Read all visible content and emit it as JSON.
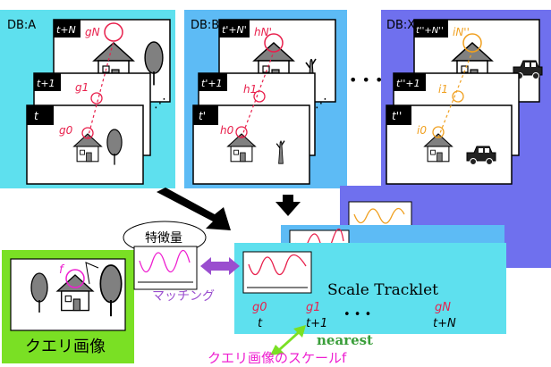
{
  "databases": [
    {
      "name": "DB:A",
      "frames": [
        "t+N",
        "t+1",
        "t"
      ],
      "labels": [
        "gN",
        "g1",
        "g0"
      ],
      "color": "#e8204c",
      "bg": "#5ee0ee"
    },
    {
      "name": "DB:B",
      "frames": [
        "t'+N'",
        "t'+1",
        "t'"
      ],
      "labels": [
        "hN'",
        "h1",
        "h0"
      ],
      "color": "#e8204c",
      "bg": "#5dbbf5"
    },
    {
      "name": "DB:X",
      "frames": [
        "t''+N''",
        "t''+1",
        "t''"
      ],
      "labels": [
        "iN''",
        "i1",
        "i0"
      ],
      "color": "#f0a020",
      "bg": "#6f70ee"
    }
  ],
  "ellipsis_top": "• • •",
  "feature_bubble": "特徴量",
  "matching_label": "マッチング",
  "query_label": "クエリ画像",
  "query_f": "f",
  "tracklet": {
    "title": "Scale Tracklet",
    "g_labels": [
      "g0",
      "g1",
      "gN"
    ],
    "t_labels": [
      "t",
      "t+1",
      "t+N"
    ],
    "dots": "• • •"
  },
  "nearest_label": "nearest",
  "bottom_label": "クエリ画像のスケールf",
  "colors": {
    "red": "#e8204c",
    "orange": "#f0a020",
    "green": "#7ae024",
    "magenta": "#ee1fd0",
    "purple": "#9a4ecf",
    "tracklet_green": "#3a9e3a"
  }
}
